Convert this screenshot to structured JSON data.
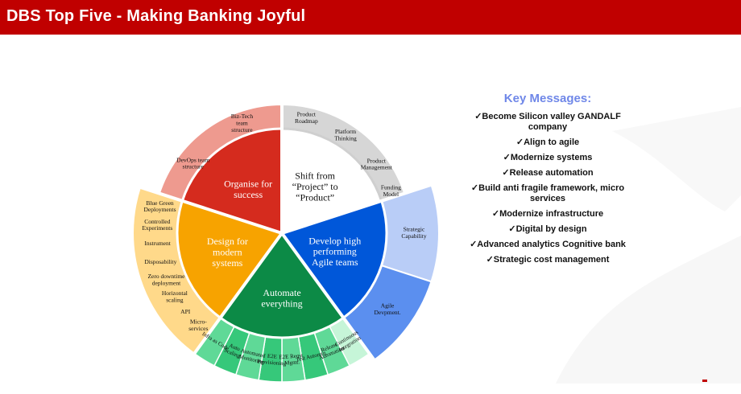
{
  "header": {
    "title": "DBS Top Five - Making Banking Joyful"
  },
  "colors": {
    "header_red": "#c00000",
    "organise": "#d52b1e",
    "organise_outer": "#ee9a8f",
    "shift_outer": "#d6d6d6",
    "develop": "#0057d9",
    "develop_outer1": "#b9cdf7",
    "develop_outer2": "#5b8fef",
    "automate": "#0c8a46",
    "automate_outer": "#36c87a",
    "design": "#f7a300",
    "design_outer": "#ffd98a",
    "key_title": "#6f87e8"
  },
  "wheel": {
    "pillars": [
      {
        "id": "organise",
        "label": [
          "Organise for",
          "success"
        ]
      },
      {
        "id": "shift",
        "label": [
          "Shift from",
          "“Project” to",
          "“Product”"
        ]
      },
      {
        "id": "develop",
        "label": [
          "Develop high",
          "performing",
          "Agile teams"
        ]
      },
      {
        "id": "automate",
        "label": [
          "Automate",
          "everything"
        ]
      },
      {
        "id": "design",
        "label": [
          "Design for",
          "modern",
          "systems"
        ]
      }
    ],
    "outer": {
      "organise": [
        [
          "Biz-Tech",
          "team",
          "structure"
        ],
        [
          "DevOps team",
          "structure"
        ]
      ],
      "shift": [
        [
          "Product",
          "Roadmap"
        ],
        [
          "Platform",
          "Thinking"
        ],
        [
          "Product",
          "Management"
        ],
        [
          "Funding",
          "Model"
        ]
      ],
      "develop": [
        [
          "Strategic",
          "Capability"
        ],
        [
          "Agile",
          "Devpment."
        ]
      ],
      "design": [
        [
          "Micro-",
          "services"
        ],
        [
          "API"
        ],
        [
          "Horizontal",
          "scaling"
        ],
        [
          "Zero downtime",
          "deployment"
        ],
        [
          "Disposability"
        ],
        [
          "Instrument"
        ],
        [
          "Controlled",
          "Experiments"
        ],
        [
          "Blue Green",
          "Deployments"
        ]
      ],
      "automate": [
        [
          "Continuous",
          "Integration"
        ],
        [
          "Release",
          "Automation"
        ],
        [
          "Test Automtn."
        ],
        [
          "E2E Reqst.",
          "Mgmt."
        ],
        [
          "E2E",
          "Provisioning"
        ],
        [
          "Automated",
          "Monitoring"
        ],
        [
          "Auto",
          "Scaling"
        ],
        [
          "Infra as Code"
        ]
      ]
    }
  },
  "key_messages": {
    "title": "Key Messages:",
    "items": [
      "✓Become Silicon valley GANDALF company",
      "✓Align to agile",
      "✓Modernize systems",
      "✓Release automation",
      "✓Build anti fragile framework, micro services",
      "✓Modernize infrastructure",
      "✓Digital by design",
      "✓Advanced analytics Cognitive bank",
      "✓Strategic cost management"
    ]
  }
}
